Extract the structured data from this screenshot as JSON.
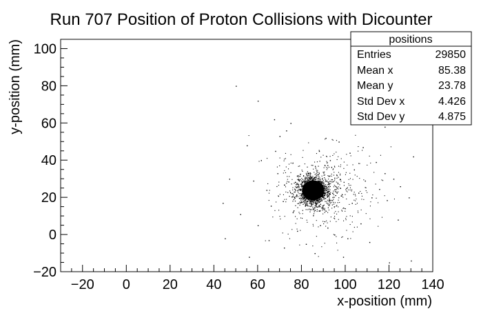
{
  "chart_data": {
    "type": "scatter",
    "title": "Run 707 Position of Proton Collisions with Dicounter",
    "xlabel": "x-position (mm)",
    "ylabel": "y-position (mm)",
    "xlim": [
      -30,
      140
    ],
    "ylim": [
      -20,
      105
    ],
    "x_ticks": [
      -20,
      0,
      20,
      40,
      60,
      80,
      100,
      120,
      140
    ],
    "y_ticks": [
      -20,
      0,
      20,
      40,
      60,
      80,
      100
    ],
    "x_tick_labels": [
      "−20",
      "0",
      "20",
      "40",
      "60",
      "80",
      "100",
      "120",
      "140"
    ],
    "y_tick_labels": [
      "−20",
      "0",
      "20",
      "40",
      "60",
      "80",
      "100"
    ],
    "grid": false,
    "series": [
      {
        "points": [
          [
            85.4,
            23.8
          ],
          [
            83.5,
            21.0
          ],
          [
            87.0,
            26.5
          ],
          [
            84.2,
            19.5
          ],
          [
            86.8,
            20.8
          ],
          [
            82.6,
            25.2
          ],
          [
            88.1,
            24.0
          ],
          [
            85.0,
            29.5
          ],
          [
            84.5,
            17.8
          ],
          [
            86.0,
            31.0
          ],
          [
            81.5,
            22.5
          ],
          [
            89.0,
            21.5
          ],
          [
            83.0,
            28.0
          ],
          [
            87.5,
            18.0
          ],
          [
            85.8,
            14.5
          ],
          [
            80.5,
            19.0
          ],
          [
            90.5,
            26.0
          ],
          [
            84.0,
            33.0
          ],
          [
            92.0,
            23.0
          ],
          [
            79.0,
            24.5
          ],
          [
            94.0,
            18.5
          ],
          [
            96.5,
            27.5
          ],
          [
            98.0,
            21.0
          ],
          [
            100.5,
            25.0
          ],
          [
            103.0,
            17.0
          ],
          [
            106.0,
            22.5
          ],
          [
            109.0,
            29.0
          ],
          [
            112.0,
            20.0
          ],
          [
            115.5,
            24.5
          ],
          [
            119.0,
            18.5
          ],
          [
            76.0,
            12.0
          ],
          [
            74.0,
            28.5
          ],
          [
            71.5,
            18.0
          ],
          [
            69.0,
            33.0
          ],
          [
            66.0,
            15.5
          ],
          [
            64.0,
            24.0
          ],
          [
            61.5,
            40.0
          ],
          [
            58.0,
            29.0
          ],
          [
            55.0,
            48.0
          ],
          [
            52.0,
            11.0
          ],
          [
            70.0,
            53.0
          ],
          [
            75.0,
            60.0
          ],
          [
            67.5,
            62.0
          ],
          [
            73.0,
            56.0
          ],
          [
            88.0,
            45.0
          ],
          [
            93.0,
            40.0
          ],
          [
            97.0,
            50.0
          ],
          [
            102.0,
            44.0
          ],
          [
            108.0,
            47.0
          ],
          [
            114.0,
            39.0
          ],
          [
            118.0,
            33.0
          ],
          [
            122.0,
            30.0
          ],
          [
            125.0,
            26.0
          ],
          [
            129.0,
            20.0
          ],
          [
            131.0,
            42.0
          ],
          [
            78.0,
            2.0
          ],
          [
            82.0,
            -5.0
          ],
          [
            88.5,
            5.0
          ],
          [
            95.0,
            0.0
          ],
          [
            101.0,
            -2.0
          ],
          [
            107.0,
            6.0
          ],
          [
            111.0,
            -4.0
          ],
          [
            72.0,
            -7.0
          ],
          [
            65.0,
            -3.0
          ],
          [
            60.0,
            5.0
          ],
          [
            86.0,
            -10.0
          ],
          [
            99.0,
            -12.0
          ],
          [
            120.0,
            -15.0
          ],
          [
            130.0,
            -14.0
          ],
          [
            50.0,
            80.0
          ],
          [
            60.0,
            72.0
          ],
          [
            44.0,
            17.0
          ],
          [
            47.0,
            30.0
          ],
          [
            45.0,
            -2.0
          ],
          [
            118.0,
            58.0
          ],
          [
            124.0,
            8.0
          ],
          [
            56.0,
            -12.0
          ],
          [
            91.0,
            52.0
          ],
          [
            68.0,
            45.0
          ],
          [
            104.0,
            35.0
          ]
        ]
      }
    ],
    "stats_box": {
      "title": "positions",
      "rows": [
        {
          "label": "Entries",
          "value": "29850"
        },
        {
          "label": "Mean x",
          "value": "85.38"
        },
        {
          "label": "Mean y",
          "value": "23.78"
        },
        {
          "label": "Std Dev x",
          "value": "4.426"
        },
        {
          "label": "Std Dev y",
          "value": "4.875"
        }
      ]
    },
    "cluster": {
      "entries": 29850,
      "mean_x": 85.38,
      "mean_y": 23.78,
      "std_x": 4.426,
      "std_y": 4.875
    }
  }
}
